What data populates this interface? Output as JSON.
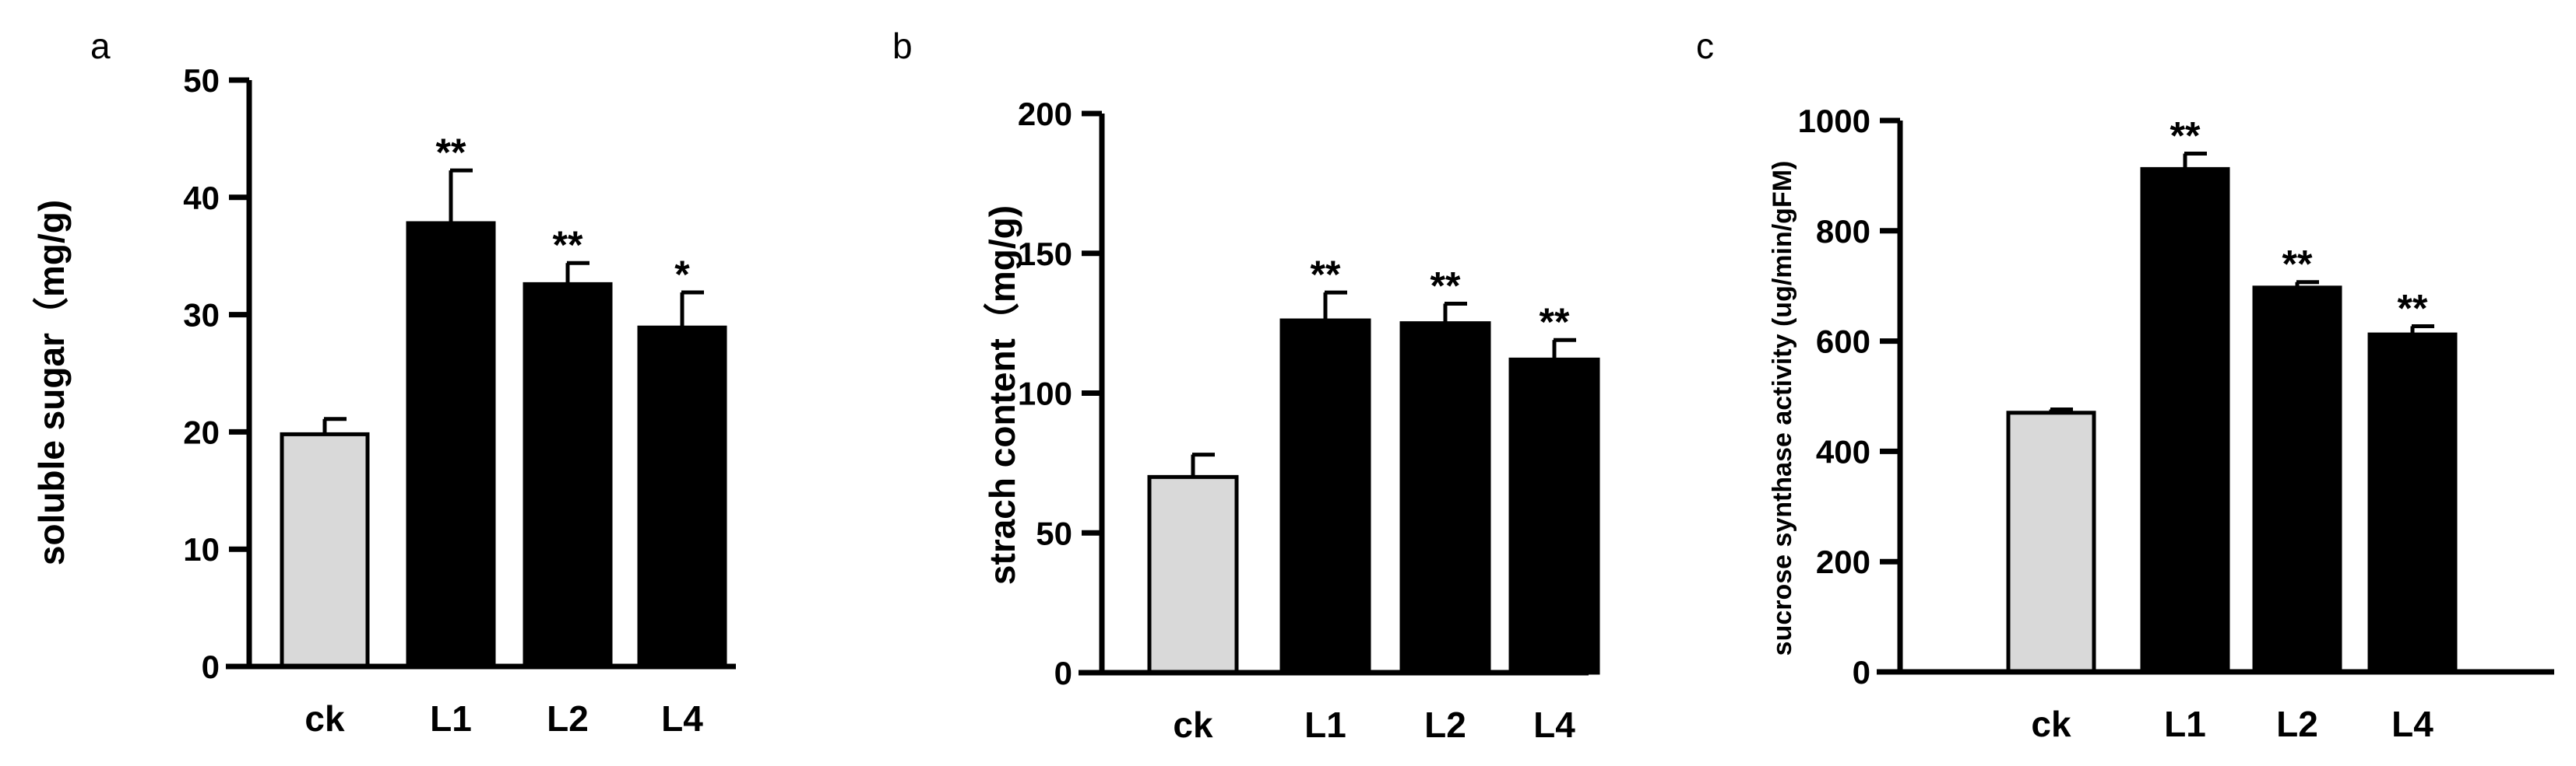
{
  "chart_data": [
    {
      "panel": "a",
      "type": "bar",
      "categories": [
        "ck",
        "L1",
        "L2",
        "L4"
      ],
      "values": [
        19.8,
        37.8,
        32.6,
        28.9
      ],
      "errors": [
        1.3,
        4.5,
        1.8,
        3.0
      ],
      "significance": [
        "",
        "**",
        "**",
        "*"
      ],
      "colors": [
        "#d9d9d9",
        "#000000",
        "#000000",
        "#000000"
      ],
      "ylabel": "soluble sugar（mg/g)",
      "ylim": [
        0,
        50
      ],
      "yticks": [
        0,
        10,
        20,
        30,
        40,
        50
      ],
      "grid": false
    },
    {
      "panel": "b",
      "type": "bar",
      "categories": [
        "ck",
        "L1",
        "L2",
        "L4"
      ],
      "values": [
        70,
        126,
        125,
        112
      ],
      "errors": [
        8,
        10,
        7,
        7
      ],
      "significance": [
        "",
        "**",
        "**",
        "**"
      ],
      "colors": [
        "#d9d9d9",
        "#000000",
        "#000000",
        "#000000"
      ],
      "ylabel": "strach content（mg/g)",
      "ylim": [
        0,
        200
      ],
      "yticks": [
        0,
        50,
        100,
        150,
        200
      ],
      "grid": false
    },
    {
      "panel": "c",
      "type": "bar",
      "categories": [
        "ck",
        "L1",
        "L2",
        "L4"
      ],
      "values": [
        470,
        912,
        697,
        612
      ],
      "errors": [
        6,
        28,
        10,
        15
      ],
      "significance": [
        "",
        "**",
        "**",
        "**"
      ],
      "colors": [
        "#d9d9d9",
        "#000000",
        "#000000",
        "#000000"
      ],
      "ylabel": "sucrose synthase activity (ug/min/gFM)",
      "ylim": [
        0,
        1000
      ],
      "yticks": [
        0,
        200,
        400,
        600,
        800,
        1000
      ],
      "grid": false
    }
  ]
}
